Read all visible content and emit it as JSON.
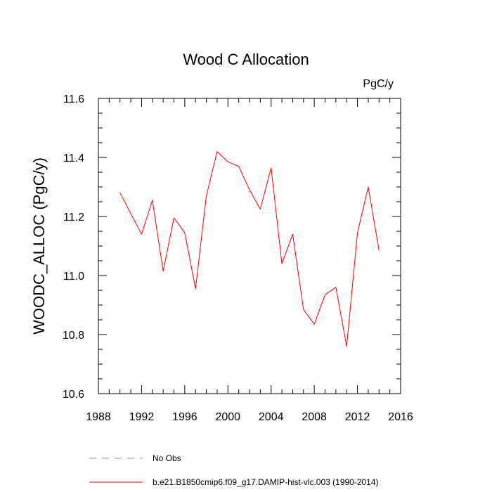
{
  "chart_data": {
    "type": "line",
    "title": "Wood C Allocation",
    "units_label": "PgC/y",
    "xlabel": "",
    "ylabel": "WOODC_ALLOC  (PgC/y)",
    "xlim": [
      1988,
      2016
    ],
    "ylim": [
      10.6,
      11.6
    ],
    "x_ticks": [
      1988,
      1992,
      1996,
      2000,
      2004,
      2008,
      2012,
      2016
    ],
    "y_ticks": [
      "10.6",
      "10.8",
      "11.0",
      "11.2",
      "11.4",
      "11.6"
    ],
    "grid": false,
    "legend_position": "bottom",
    "series": [
      {
        "name": "b.e21.B1850cmip6.f09_g17.DAMIP-hist-vlc.003 (1990-2014)",
        "color": "#ff0000",
        "style": "solid",
        "x": [
          1990,
          1991,
          1992,
          1993,
          1994,
          1995,
          1996,
          1997,
          1998,
          1999,
          2000,
          2001,
          2002,
          2003,
          2004,
          2005,
          2006,
          2007,
          2008,
          2009,
          2010,
          2011,
          2012,
          2013,
          2014
        ],
        "values": [
          11.28,
          11.21,
          11.14,
          11.255,
          11.015,
          11.195,
          11.145,
          10.955,
          11.27,
          11.42,
          11.385,
          11.37,
          11.29,
          11.225,
          11.365,
          11.04,
          11.14,
          10.885,
          10.835,
          10.935,
          10.96,
          10.76,
          11.145,
          11.3,
          11.085
        ]
      }
    ],
    "legend": [
      {
        "label": "No Obs",
        "color": "#8888ff",
        "style": "dashed"
      },
      {
        "label": "b.e21.B1850cmip6.f09_g17.DAMIP-hist-vlc.003 (1990-2014)",
        "color": "#ff0000",
        "style": "solid"
      }
    ]
  }
}
